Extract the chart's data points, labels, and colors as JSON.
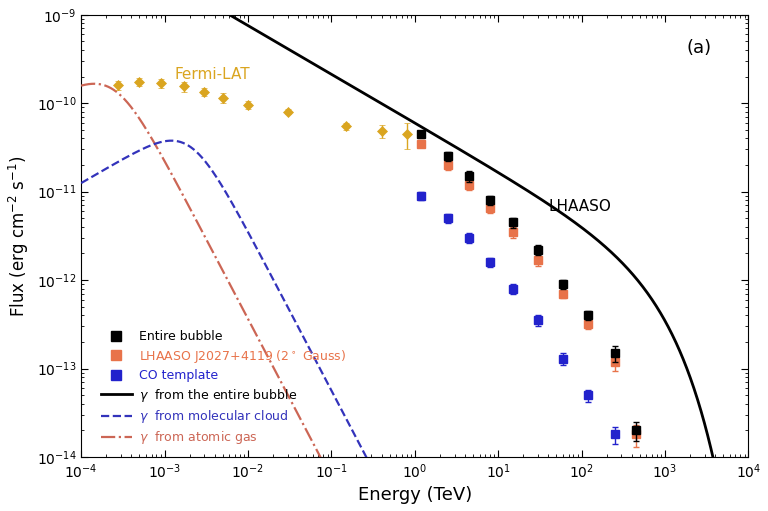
{
  "title_label": "(a)",
  "xlabel": "Energy (TeV)",
  "ylabel": "Flux (erg cm$^{-2}$ s$^{-1}$)",
  "xlim": [
    0.0001,
    10000.0
  ],
  "ylim": [
    1e-14,
    1e-09
  ],
  "lhaaso_label": "LHAASO",
  "fermi_label": "Fermi-LAT",
  "fermi_x": [
    0.00028,
    0.0005,
    0.0009,
    0.0017,
    0.003,
    0.005,
    0.01,
    0.03,
    0.15,
    0.4,
    0.8
  ],
  "fermi_y": [
    1.6e-10,
    1.75e-10,
    1.7e-10,
    1.55e-10,
    1.35e-10,
    1.15e-10,
    9.5e-11,
    8e-11,
    5.5e-11,
    4.8e-11,
    4.5e-11
  ],
  "fermi_yerr_lo": [
    2e-11,
    2e-11,
    2e-11,
    2e-11,
    1.5e-11,
    1.5e-11,
    1e-11,
    5e-12,
    5e-12,
    8e-12,
    1.5e-11
  ],
  "fermi_yerr_hi": [
    2e-11,
    2e-11,
    2e-11,
    2e-11,
    1.5e-11,
    1.5e-11,
    1e-11,
    5e-12,
    5e-12,
    8e-12,
    1.5e-11
  ],
  "fermi_color": "#DAA520",
  "lhaaso_bubble_x": [
    1.2,
    2.5,
    4.5,
    8,
    15,
    30,
    60,
    120,
    250,
    450
  ],
  "lhaaso_bubble_y": [
    4.5e-11,
    2.5e-11,
    1.5e-11,
    8e-12,
    4.5e-12,
    2.2e-12,
    9e-13,
    4e-13,
    1.5e-13,
    2e-14
  ],
  "lhaaso_bubble_yerr_lo": [
    4e-12,
    3e-12,
    2e-12,
    1e-12,
    6e-13,
    3e-13,
    1e-13,
    5e-14,
    3e-14,
    5e-15
  ],
  "lhaaso_bubble_yerr_hi": [
    4e-12,
    3e-12,
    2e-12,
    1e-12,
    6e-13,
    3e-13,
    1e-13,
    5e-14,
    3e-14,
    5e-15
  ],
  "lhaaso_bubble_color": "#000000",
  "lhaaso_gauss_x": [
    1.2,
    2.5,
    4.5,
    8,
    15,
    30,
    60,
    120,
    250,
    450
  ],
  "lhaaso_gauss_y": [
    3.5e-11,
    2e-11,
    1.2e-11,
    6.5e-12,
    3.5e-12,
    1.7e-12,
    7e-13,
    3.2e-13,
    1.2e-13,
    1.8e-14
  ],
  "lhaaso_gauss_yerr_lo": [
    3e-12,
    2.5e-12,
    1.5e-12,
    8e-13,
    5e-13,
    2.5e-13,
    8e-14,
    4e-14,
    2.5e-14,
    5e-15
  ],
  "lhaaso_gauss_yerr_hi": [
    3e-12,
    2.5e-12,
    1.5e-12,
    8e-13,
    5e-13,
    2.5e-13,
    8e-14,
    4e-14,
    2.5e-14,
    5e-15
  ],
  "lhaaso_gauss_color": "#E8734A",
  "lhaaso_co_x": [
    1.2,
    2.5,
    4.5,
    8,
    15,
    30,
    60,
    120,
    250
  ],
  "lhaaso_co_y": [
    9e-12,
    5e-12,
    3e-12,
    1.6e-12,
    8e-13,
    3.5e-13,
    1.3e-13,
    5e-14,
    1.8e-14
  ],
  "lhaaso_co_yerr_lo": [
    1e-12,
    6e-13,
    4e-13,
    2e-13,
    1e-13,
    5e-14,
    2e-14,
    8e-15,
    4e-15
  ],
  "lhaaso_co_yerr_hi": [
    1e-12,
    6e-13,
    4e-13,
    2e-13,
    1e-13,
    5e-14,
    2e-14,
    8e-15,
    4e-15
  ],
  "lhaaso_co_color": "#2222CC",
  "curve_bubble_color": "#000000",
  "curve_mol_color": "#3333BB",
  "curve_atomic_color": "#CC6655"
}
